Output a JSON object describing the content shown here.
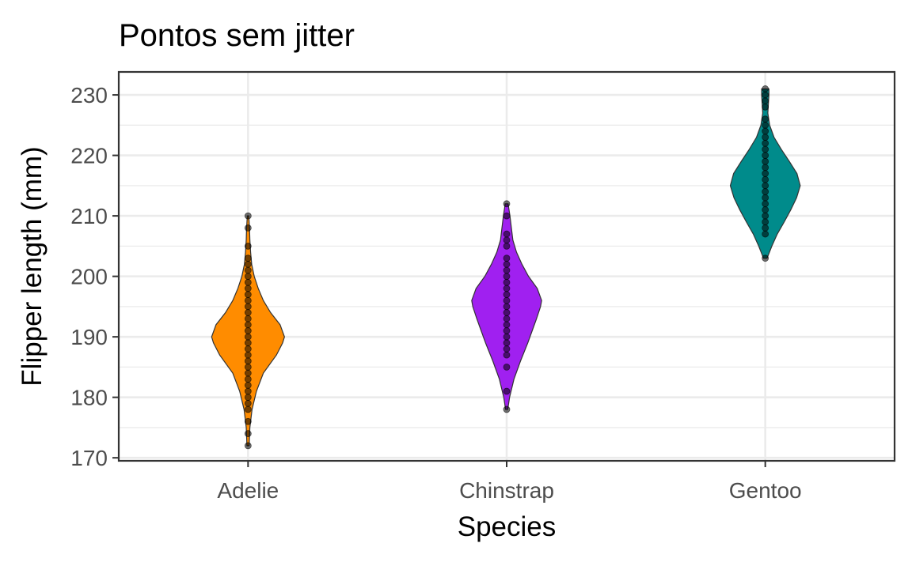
{
  "chart_data": {
    "type": "violin",
    "title": "Pontos sem jitter",
    "xlabel": "Species",
    "ylabel": "Flipper length (mm)",
    "categories": [
      "Adelie",
      "Chinstrap",
      "Gentoo"
    ],
    "ylim": [
      169.5,
      233.8
    ],
    "yticks": [
      170,
      180,
      190,
      200,
      210,
      220,
      230
    ],
    "grid": true,
    "colors": {
      "Adelie": "#ff8c00",
      "Chinstrap": "#a020f0",
      "Gentoo": "#008b8b"
    },
    "violins": [
      {
        "name": "Adelie",
        "density": [
          [
            172,
            0.03
          ],
          [
            175,
            0.05
          ],
          [
            178,
            0.11
          ],
          [
            181,
            0.23
          ],
          [
            184,
            0.42
          ],
          [
            187,
            0.78
          ],
          [
            189,
            0.95
          ],
          [
            190,
            1.0
          ],
          [
            192,
            0.88
          ],
          [
            194,
            0.62
          ],
          [
            196,
            0.42
          ],
          [
            198,
            0.28
          ],
          [
            200,
            0.17
          ],
          [
            202,
            0.1
          ],
          [
            204,
            0.07
          ],
          [
            206,
            0.05
          ],
          [
            208,
            0.04
          ],
          [
            210,
            0.02
          ]
        ],
        "points": [
          172,
          174,
          176,
          178,
          179,
          180,
          181,
          182,
          183,
          184,
          185,
          186,
          187,
          188,
          189,
          190,
          191,
          192,
          193,
          194,
          195,
          196,
          197,
          198,
          199,
          200,
          201,
          202,
          203,
          205,
          208,
          210
        ]
      },
      {
        "name": "Chinstrap",
        "density": [
          [
            178,
            0.03
          ],
          [
            180,
            0.08
          ],
          [
            183,
            0.2
          ],
          [
            186,
            0.38
          ],
          [
            189,
            0.58
          ],
          [
            191,
            0.7
          ],
          [
            193,
            0.82
          ],
          [
            195,
            0.93
          ],
          [
            196,
            0.96
          ],
          [
            198,
            0.84
          ],
          [
            200,
            0.6
          ],
          [
            202,
            0.42
          ],
          [
            204,
            0.27
          ],
          [
            206,
            0.17
          ],
          [
            208,
            0.13
          ],
          [
            210,
            0.09
          ],
          [
            212,
            0.04
          ]
        ],
        "points": [
          178,
          181,
          185,
          187,
          188,
          189,
          190,
          191,
          192,
          193,
          194,
          195,
          196,
          197,
          198,
          199,
          200,
          201,
          202,
          203,
          205,
          206,
          207,
          210,
          212
        ]
      },
      {
        "name": "Gentoo",
        "density": [
          [
            203,
            0.05
          ],
          [
            205,
            0.18
          ],
          [
            207,
            0.33
          ],
          [
            209,
            0.52
          ],
          [
            211,
            0.7
          ],
          [
            213,
            0.86
          ],
          [
            215,
            0.96
          ],
          [
            217,
            0.87
          ],
          [
            219,
            0.66
          ],
          [
            221,
            0.44
          ],
          [
            223,
            0.24
          ],
          [
            225,
            0.12
          ],
          [
            227,
            0.07
          ],
          [
            229,
            0.09
          ],
          [
            230,
            0.1
          ],
          [
            231,
            0.1
          ]
        ],
        "points": [
          203,
          207,
          208,
          209,
          210,
          211,
          212,
          213,
          214,
          215,
          216,
          217,
          218,
          219,
          220,
          221,
          222,
          223,
          224,
          225,
          226,
          228,
          229,
          230,
          231
        ]
      }
    ]
  }
}
